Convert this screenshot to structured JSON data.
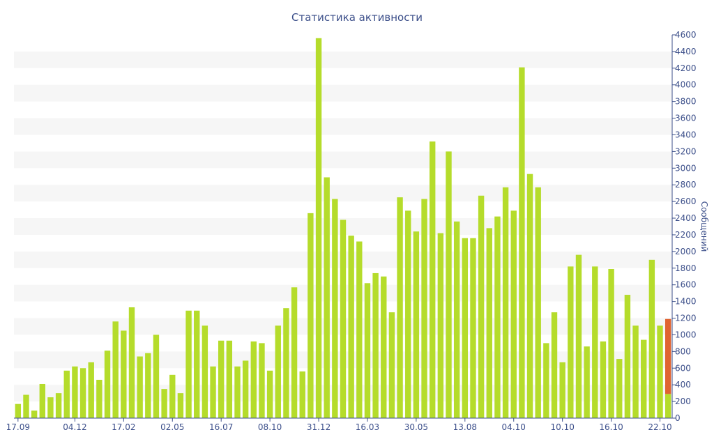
{
  "chart_data": {
    "type": "bar",
    "title": "Статистика активности",
    "ylabel": "Сообщений",
    "xlabel": "",
    "ylim": [
      0,
      4600
    ],
    "y_ticks": [
      0,
      200,
      400,
      600,
      800,
      1000,
      1200,
      1400,
      1600,
      1800,
      2000,
      2200,
      2400,
      2600,
      2800,
      3000,
      3200,
      3400,
      3600,
      3800,
      4000,
      4200,
      4400,
      4600
    ],
    "x_tick_labels": [
      {
        "index": 0,
        "label": "17.09"
      },
      {
        "index": 7,
        "label": "04.12"
      },
      {
        "index": 13,
        "label": "17.02"
      },
      {
        "index": 19,
        "label": "02.05"
      },
      {
        "index": 25,
        "label": "16.07"
      },
      {
        "index": 31,
        "label": "08.10"
      },
      {
        "index": 37,
        "label": "31.12"
      },
      {
        "index": 43,
        "label": "16.03"
      },
      {
        "index": 49,
        "label": "30.05"
      },
      {
        "index": 55,
        "label": "13.08"
      },
      {
        "index": 61,
        "label": "04.10"
      },
      {
        "index": 67,
        "label": "10.10"
      },
      {
        "index": 73,
        "label": "16.10"
      },
      {
        "index": 79,
        "label": "22.10"
      }
    ],
    "grid": "alternating horizontal bands",
    "y_axis_side": "right",
    "colors": {
      "bar": "#b5dc2b",
      "highlight": "#e06330",
      "band": "#f6f6f6",
      "axis": "#3c4f8a"
    },
    "values": [
      170,
      280,
      90,
      410,
      250,
      300,
      570,
      620,
      600,
      670,
      460,
      810,
      1160,
      1050,
      1330,
      740,
      780,
      1000,
      350,
      520,
      300,
      1290,
      1290,
      1110,
      620,
      930,
      930,
      620,
      690,
      920,
      900,
      570,
      1110,
      1320,
      1570,
      560,
      2460,
      4560,
      2890,
      2630,
      2380,
      2190,
      2120,
      1620,
      1740,
      1700,
      1270,
      2650,
      2490,
      2240,
      2630,
      3320,
      2220,
      3200,
      2360,
      2160,
      2160,
      2670,
      2280,
      2420,
      2770,
      2490,
      4210,
      2930,
      2770,
      900,
      1270,
      670,
      1820,
      1960,
      860,
      1820,
      920,
      1790,
      710,
      1480,
      1110,
      940,
      1900,
      1110,
      290
    ],
    "highlight_stack": {
      "index": 80,
      "value": 900
    }
  }
}
